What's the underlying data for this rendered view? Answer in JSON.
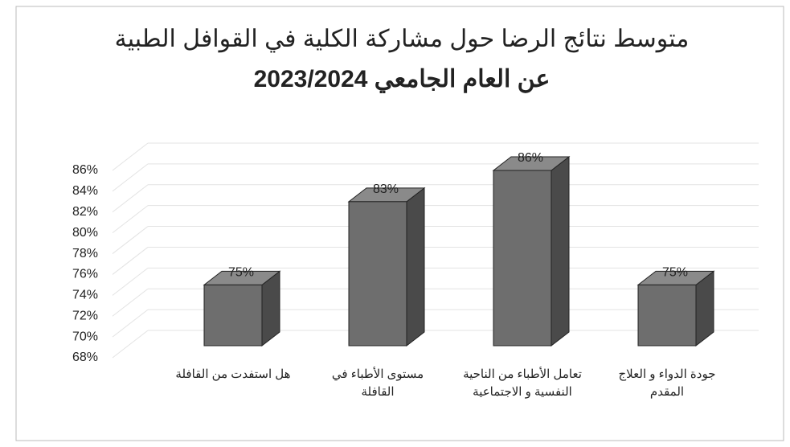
{
  "chart_data": {
    "type": "bar3d",
    "title": [
      "متوسط نتائج الرضا حول مشاركة الكلية في القوافل الطبية",
      "عن العام الجامعي 2023/2024"
    ],
    "categories": [
      "هل استفدت من القافلة",
      "مستوى الأطباء في القافلة",
      "تعامل الأطباء من الناحية النفسية و الاجتماعية",
      "جودة الدواء و العلاج المقدم"
    ],
    "values": [
      75,
      83,
      86,
      75
    ],
    "value_labels": [
      "75%",
      "83%",
      "86%",
      "75%"
    ],
    "color": "#6e6e6e",
    "ylim": [
      68,
      86
    ],
    "yticks": [
      {
        "value": 68,
        "label": "68%"
      },
      {
        "value": 70,
        "label": "70%"
      },
      {
        "value": 72,
        "label": "72%"
      },
      {
        "value": 74,
        "label": "74%"
      },
      {
        "value": 76,
        "label": "76%"
      },
      {
        "value": 78,
        "label": "78%"
      },
      {
        "value": 80,
        "label": "80%"
      },
      {
        "value": 82,
        "label": "82%"
      },
      {
        "value": 84,
        "label": "84%"
      },
      {
        "value": 86,
        "label": "86%"
      }
    ],
    "grid": true
  }
}
